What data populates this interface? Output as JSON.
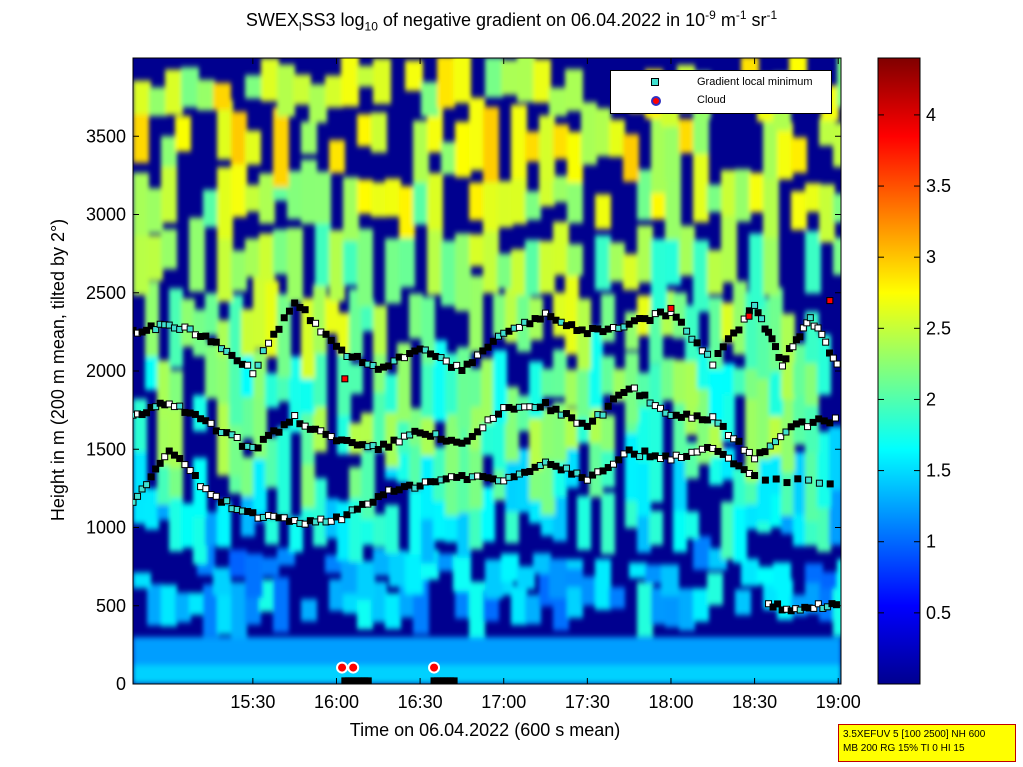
{
  "chart_data": {
    "type": "heatmap",
    "title": {
      "part1": "SWEX",
      "sub1": "l",
      "part2": "SS3 log",
      "sub2": "10",
      "part3": " of negative gradient on 06.04.2022 in 10",
      "sup1": "-9",
      "part4": " m",
      "sup2": "-1",
      "part5": " sr",
      "sup3": "-1"
    },
    "xlabel": "Time on 06.04.2022 (600 s mean)",
    "ylabel": "Height in m (200 m mean, tilted by 2°)",
    "x_ticks": [
      "15:30",
      "16:00",
      "16:30",
      "17:00",
      "17:30",
      "18:00",
      "18:30",
      "19:00"
    ],
    "x_tick_minutes": [
      930,
      960,
      990,
      1020,
      1050,
      1080,
      1110,
      1140
    ],
    "xlim_minutes": [
      887,
      1141
    ],
    "y_ticks": [
      0,
      500,
      1000,
      1500,
      2000,
      2500,
      3000,
      3500
    ],
    "ylim": [
      0,
      4000
    ],
    "colorbar": {
      "ticks": [
        "0.5",
        "1",
        "1.5",
        "2",
        "2.5",
        "3",
        "3.5",
        "4"
      ],
      "tick_values": [
        0.5,
        1,
        1.5,
        2,
        2.5,
        3,
        3.5,
        4
      ],
      "range": [
        0,
        4.4
      ]
    },
    "legend": {
      "position": "top-right",
      "entries": [
        {
          "label": "Gradient local minimum",
          "color": "#40e0d0"
        },
        {
          "label": "Cloud",
          "color": "#ff0000"
        }
      ]
    },
    "layers": [
      {
        "height_m": [
          1150,
          1500,
          1200,
          1080,
          1030,
          1050,
          1200,
          1280,
          1330,
          1300,
          1420,
          1320,
          1480,
          1450,
          1500,
          1320,
          1280
        ],
        "minute": [
          887,
          900,
          915,
          930,
          945,
          960,
          975,
          990,
          1005,
          1020,
          1035,
          1050,
          1065,
          1080,
          1095,
          1110,
          1141
        ]
      },
      {
        "height_m": [
          1700,
          1800,
          1650,
          1500,
          1700,
          1550,
          1500,
          1620,
          1520,
          1760,
          1780,
          1640,
          1900,
          1720,
          1700,
          1450,
          1650,
          1700
        ],
        "minute": [
          887,
          900,
          915,
          930,
          945,
          960,
          975,
          990,
          1005,
          1020,
          1035,
          1050,
          1065,
          1080,
          1095,
          1110,
          1125,
          1141
        ]
      },
      {
        "height_m": [
          2250,
          2300,
          2200,
          2000,
          2450,
          2150,
          2000,
          2150,
          2000,
          2250,
          2350,
          2250,
          2300,
          2380,
          2050,
          2420,
          2050,
          2350,
          2000
        ],
        "minute": [
          887,
          900,
          915,
          930,
          945,
          960,
          975,
          990,
          1005,
          1020,
          1035,
          1050,
          1065,
          1080,
          1095,
          1110,
          1120,
          1130,
          1141
        ]
      },
      {
        "height_m": [
          500,
          480,
          520
        ],
        "minute": [
          1115,
          1128,
          1141
        ]
      }
    ],
    "clouds": [
      {
        "minute": 963,
        "height_m": 1950
      },
      {
        "minute": 962,
        "height_m": 105
      },
      {
        "minute": 966,
        "height_m": 105
      },
      {
        "minute": 995,
        "height_m": 105
      },
      {
        "minute": 1080,
        "height_m": 2400
      },
      {
        "minute": 1108,
        "height_m": 2350
      },
      {
        "minute": 1137,
        "height_m": 2450
      }
    ]
  },
  "infobox": {
    "line1": "3.5XEFUV 5 [100 2500] NH 600",
    "line2": "MB 200 RG 15% TI 0 HI 15"
  }
}
